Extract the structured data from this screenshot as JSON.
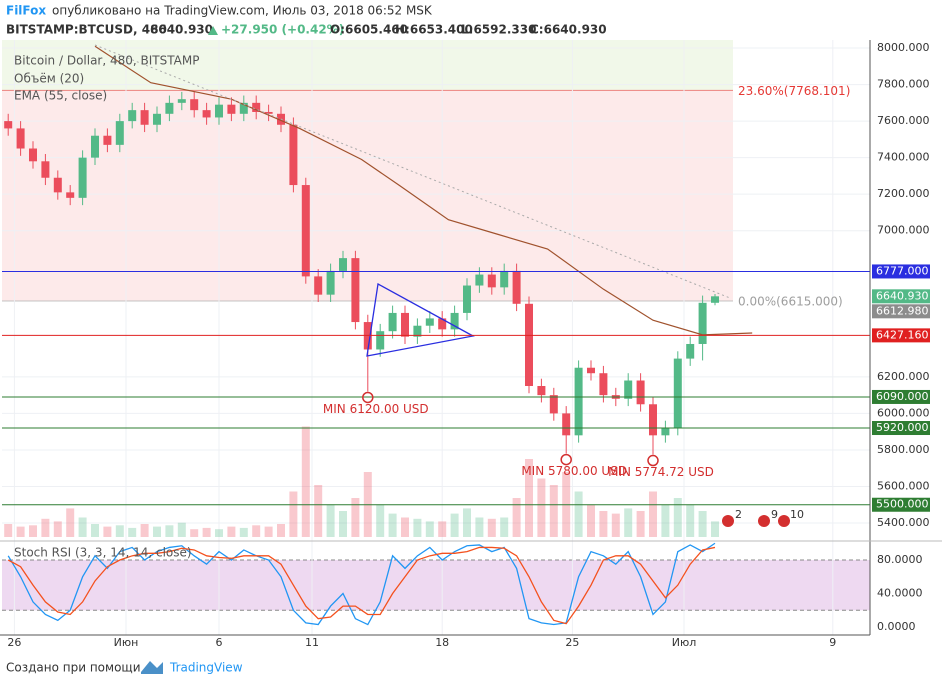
{
  "header": {
    "author": "FilFox",
    "published": "опубликовано на TradingView.com, Июль 03, 2018 06:52 MSK",
    "symbol": "BITSTAMP:BTCUSD, 480",
    "price": "6640.930",
    "change": "+27.950 (+0.42%)",
    "ohlc": [
      "O:6605.460",
      "H:6653.400",
      "L:6592.330",
      "C:6640.930"
    ]
  },
  "chart_data": [
    {
      "type": "candlestick",
      "title": "Bitcoin / Dollar, 480, BITSTAMP",
      "x": [
        -1,
        1,
        3,
        5,
        7,
        9,
        11,
        13,
        15,
        17,
        19,
        21,
        23,
        25,
        27,
        29,
        31,
        33,
        35,
        37,
        39,
        41,
        43,
        45,
        47,
        49,
        51,
        53,
        55,
        57,
        59,
        61,
        63,
        65,
        67,
        69,
        71,
        73,
        75,
        77,
        79,
        81,
        83,
        85,
        87,
        89,
        91,
        93,
        95,
        97,
        99,
        101,
        103,
        105,
        107,
        109,
        111,
        113
      ],
      "open": [
        7600,
        7560,
        7450,
        7380,
        7290,
        7210,
        7180,
        7400,
        7520,
        7470,
        7600,
        7660,
        7580,
        7640,
        7700,
        7720,
        7660,
        7620,
        7690,
        7640,
        7700,
        7650,
        7640,
        7580,
        7250,
        6750,
        6650,
        6780,
        6850,
        6500,
        6350,
        6450,
        6550,
        6420,
        6480,
        6520,
        6460,
        6550,
        6700,
        6760,
        6690,
        6780,
        6600,
        6150,
        6100,
        6000,
        5880,
        6250,
        6220,
        6100,
        6080,
        6180,
        6050,
        5880,
        5920,
        6300,
        6380,
        6605.46
      ],
      "high": [
        7640,
        7600,
        7490,
        7420,
        7330,
        7250,
        7440,
        7560,
        7560,
        7640,
        7700,
        7700,
        7680,
        7740,
        7760,
        7760,
        7700,
        7730,
        7730,
        7740,
        7740,
        7690,
        7680,
        7620,
        7290,
        6790,
        6820,
        6890,
        6890,
        6540,
        6490,
        6590,
        6590,
        6520,
        6560,
        6560,
        6590,
        6740,
        6800,
        6800,
        6820,
        6820,
        6640,
        6190,
        6140,
        6040,
        6290,
        6290,
        6260,
        6140,
        6220,
        6220,
        6090,
        5960,
        6340,
        6420,
        6645,
        6653.4
      ],
      "low": [
        7520,
        7410,
        7340,
        7250,
        7170,
        7140,
        7140,
        7360,
        7430,
        7430,
        7560,
        7540,
        7540,
        7600,
        7660,
        7620,
        7580,
        7580,
        7600,
        7600,
        7610,
        7600,
        7540,
        7210,
        6710,
        6610,
        6610,
        6740,
        6460,
        6120,
        6310,
        6410,
        6380,
        6380,
        6440,
        6420,
        6420,
        6510,
        6660,
        6650,
        6650,
        6560,
        6110,
        6060,
        5960,
        5780,
        5840,
        6180,
        6060,
        6040,
        6040,
        6010,
        5774.72,
        5840,
        5880,
        6260,
        6290,
        6592.33
      ],
      "close": [
        7560,
        7450,
        7380,
        7290,
        7210,
        7180,
        7400,
        7520,
        7470,
        7600,
        7660,
        7580,
        7640,
        7700,
        7720,
        7660,
        7620,
        7690,
        7640,
        7700,
        7650,
        7640,
        7580,
        7250,
        6750,
        6650,
        6780,
        6850,
        6500,
        6350,
        6450,
        6550,
        6420,
        6480,
        6520,
        6460,
        6550,
        6700,
        6760,
        6690,
        6780,
        6600,
        6150,
        6100,
        6000,
        5880,
        6250,
        6220,
        6100,
        6080,
        6180,
        6050,
        5880,
        5920,
        6300,
        6380,
        6605.46,
        6640.93
      ],
      "up_color": "#53b987",
      "down_color": "#eb4d5c",
      "volume": {
        "name": "Объём (20)",
        "ylim": [
          0,
          100
        ],
        "values": [
          10,
          8,
          9,
          14,
          12,
          22,
          15,
          10,
          8,
          9,
          7,
          10,
          8,
          9,
          11,
          6,
          7,
          6,
          8,
          7,
          9,
          8,
          10,
          35,
          85,
          40,
          25,
          20,
          30,
          50,
          25,
          18,
          15,
          14,
          12,
          12,
          18,
          22,
          15,
          14,
          15,
          30,
          60,
          45,
          40,
          50,
          35,
          25,
          20,
          18,
          22,
          20,
          35,
          25,
          30,
          25,
          20,
          12
        ]
      },
      "ema": {
        "name": "EMA (55, close)",
        "color": "#a0522d",
        "x": [
          13,
          22,
          35,
          46,
          56,
          62,
          70,
          78,
          86,
          95,
          103,
          111,
          119
        ],
        "values": [
          8010,
          7810,
          7720,
          7560,
          7390,
          7250,
          7060,
          6980,
          6900,
          6680,
          6510,
          6430,
          6440
        ]
      },
      "xlim": [
        -2,
        138
      ],
      "xticks": [
        {
          "value": 0,
          "label": "26"
        },
        {
          "value": 18,
          "label": "Июн"
        },
        {
          "value": 33,
          "label": "6"
        },
        {
          "value": 48,
          "label": "11"
        },
        {
          "value": 69,
          "label": "18"
        },
        {
          "value": 90,
          "label": "25"
        },
        {
          "value": 108,
          "label": "Июл"
        },
        {
          "value": 132,
          "label": "9"
        }
      ],
      "ylim": [
        5307,
        8044
      ],
      "yticks": [
        {
          "value": 8000,
          "label": "8000.000"
        },
        {
          "value": 7800,
          "label": "7800.000"
        },
        {
          "value": 7600,
          "label": "7600.000"
        },
        {
          "value": 7400,
          "label": "7400.000"
        },
        {
          "value": 7200,
          "label": "7200.000"
        },
        {
          "value": 7000,
          "label": "7000.000"
        },
        {
          "value": 6200,
          "label": "6200.000"
        },
        {
          "value": 6000,
          "label": "6000.000"
        },
        {
          "value": 5800,
          "label": "5800.000"
        },
        {
          "value": 5600,
          "label": "5600.000"
        },
        {
          "value": 5400,
          "label": "5400.000"
        }
      ],
      "fib": [
        {
          "value": 7768.101,
          "label": "23.60%(7768.101)",
          "color": "#e53935"
        },
        {
          "value": 6615,
          "label": "0.00%(6615.000)",
          "color": "#9e9e9e"
        }
      ],
      "levels": [
        {
          "value": 6777,
          "label": "6777.000",
          "color": "#2a2ee0",
          "line": true
        },
        {
          "value": 6640.93,
          "label": "6640.930",
          "color": "#53b987",
          "line": false
        },
        {
          "value": 6612.98,
          "label": "6612.980",
          "color": "#8c8c8c",
          "line": false
        },
        {
          "value": 6427.16,
          "label": "6427.160",
          "color": "#e02020",
          "line": true
        },
        {
          "value": 6090,
          "label": "6090.000",
          "color": "#2e7d32",
          "line": true
        },
        {
          "value": 5920,
          "label": "5920.000",
          "color": "#2e7d32",
          "line": true
        },
        {
          "value": 5500,
          "label": "5500.000",
          "color": "#2e7d32",
          "line": true
        }
      ],
      "annotations": [
        {
          "text": "MIN 6120.00 USD",
          "x": 57,
          "value": 6120
        },
        {
          "text": "MIN 5780.00 USD",
          "x": 89,
          "value": 5780
        },
        {
          "text": "MIN 5774.72 USD",
          "x": 103,
          "value": 5774.72
        }
      ],
      "events": [
        "2",
        "9",
        "10"
      ]
    },
    {
      "type": "line",
      "title": "Stoch RSI (3, 3, 14, 14, close)",
      "x": [
        -1,
        1,
        3,
        5,
        7,
        9,
        11,
        13,
        15,
        17,
        19,
        21,
        23,
        25,
        27,
        29,
        31,
        33,
        35,
        37,
        39,
        41,
        43,
        45,
        47,
        49,
        51,
        53,
        55,
        57,
        59,
        61,
        63,
        65,
        67,
        69,
        71,
        73,
        75,
        77,
        79,
        81,
        83,
        85,
        87,
        89,
        91,
        93,
        95,
        97,
        99,
        101,
        103,
        105,
        107,
        109,
        111,
        113
      ],
      "ylim": [
        -9.5,
        100.3
      ],
      "yticks": [
        {
          "value": 80,
          "label": "80.0000"
        },
        {
          "value": 40,
          "label": "40.0000"
        },
        {
          "value": 0,
          "label": "0.0000"
        }
      ],
      "band": [
        20,
        80
      ],
      "series": [
        {
          "color": "#2196f3",
          "values": [
            85,
            60,
            30,
            15,
            8,
            20,
            60,
            85,
            70,
            90,
            95,
            80,
            90,
            95,
            97,
            85,
            75,
            90,
            80,
            92,
            85,
            80,
            60,
            20,
            5,
            3,
            25,
            40,
            10,
            3,
            30,
            85,
            70,
            85,
            95,
            80,
            90,
            97,
            98,
            90,
            95,
            70,
            10,
            5,
            3,
            5,
            60,
            90,
            85,
            75,
            90,
            60,
            15,
            30,
            90,
            98,
            90,
            100
          ]
        },
        {
          "color": "#f4511e",
          "values": [
            80,
            72,
            50,
            30,
            18,
            15,
            30,
            55,
            72,
            80,
            85,
            88,
            88,
            90,
            94,
            92,
            85,
            83,
            82,
            85,
            85,
            85,
            75,
            50,
            25,
            10,
            12,
            25,
            25,
            15,
            15,
            40,
            60,
            80,
            85,
            88,
            88,
            90,
            95,
            95,
            94,
            85,
            60,
            30,
            8,
            4,
            25,
            50,
            80,
            85,
            85,
            75,
            55,
            35,
            50,
            75,
            92,
            95
          ]
        }
      ]
    }
  ],
  "footer": {
    "credit": "Создано при помощи",
    "brand": "TradingView"
  }
}
